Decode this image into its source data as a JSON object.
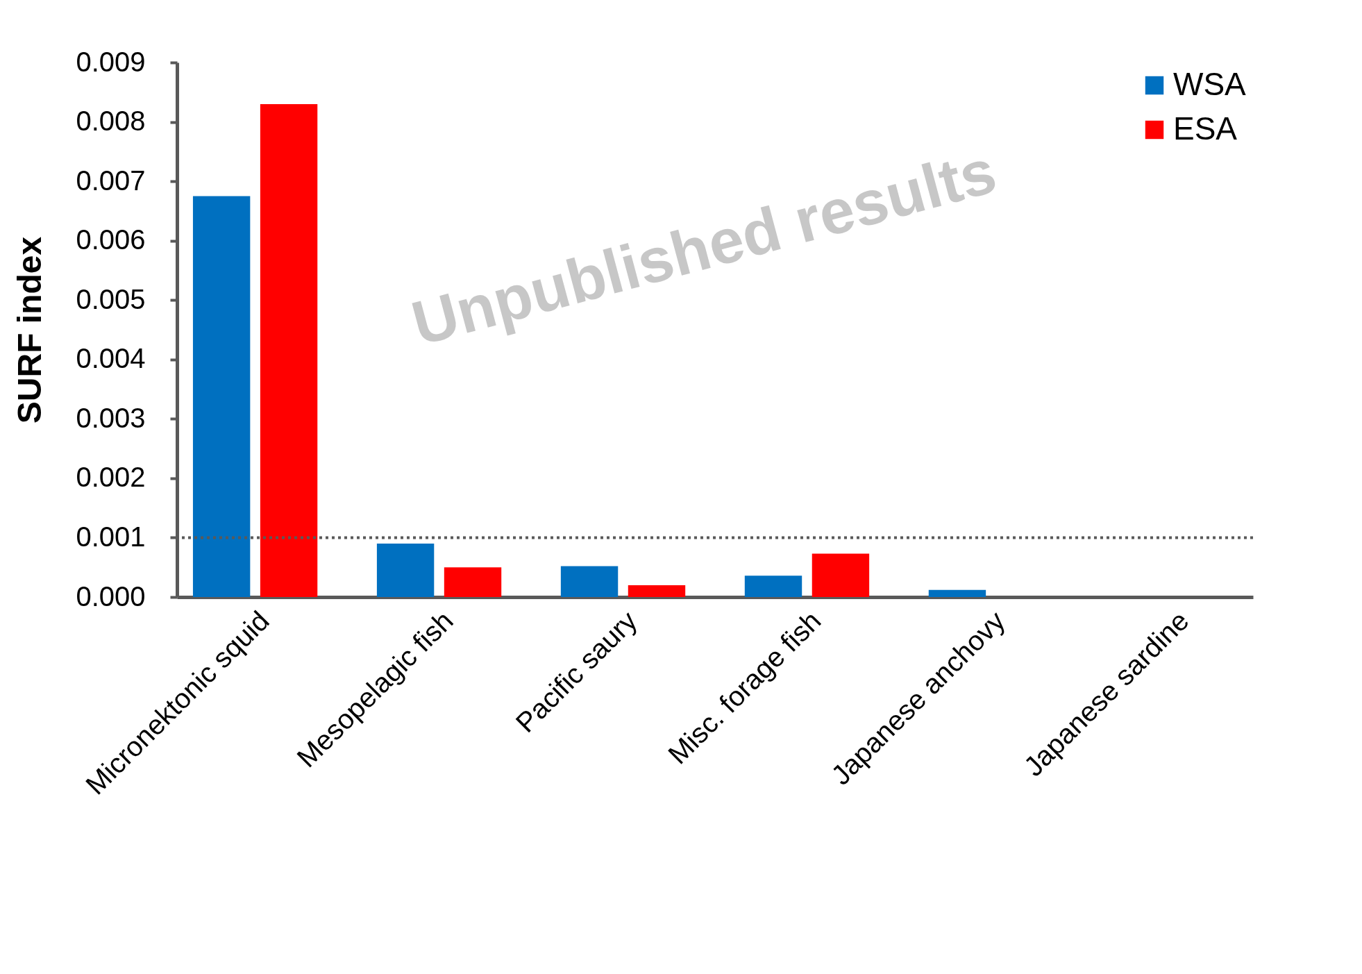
{
  "chart_data": {
    "type": "bar",
    "ylabel": "SURF index",
    "categories": [
      "Micronektonic squid",
      "Mesopelagic fish",
      "Pacific saury",
      "Misc. forage fish",
      "Japanese anchovy",
      "Japanese sardine"
    ],
    "series": [
      {
        "name": "WSA",
        "color": "#0070c0",
        "values": [
          0.00675,
          0.0009,
          0.00052,
          0.00036,
          0.00012,
          0
        ]
      },
      {
        "name": "ESA",
        "color": "#ff0000",
        "values": [
          0.0083,
          0.0005,
          0.0002,
          0.00073,
          0,
          0
        ]
      }
    ],
    "ylim": [
      0,
      0.009
    ],
    "yticks": [
      {
        "value": 0,
        "label": "0.000"
      },
      {
        "value": 0.001,
        "label": "0.001"
      },
      {
        "value": 0.002,
        "label": "0.002"
      },
      {
        "value": 0.003,
        "label": "0.003"
      },
      {
        "value": 0.004,
        "label": "0.004"
      },
      {
        "value": 0.005,
        "label": "0.005"
      },
      {
        "value": 0.006,
        "label": "0.006"
      },
      {
        "value": 0.007,
        "label": "0.007"
      },
      {
        "value": 0.008,
        "label": "0.008"
      },
      {
        "value": 0.009,
        "label": "0.009"
      }
    ],
    "ref_lines": [
      {
        "axis": "y",
        "value": 0.001,
        "color": "#595959",
        "line_style": "dotted"
      }
    ],
    "annotations": [
      "Unpublished results"
    ],
    "legend": "top right",
    "grid": false
  }
}
